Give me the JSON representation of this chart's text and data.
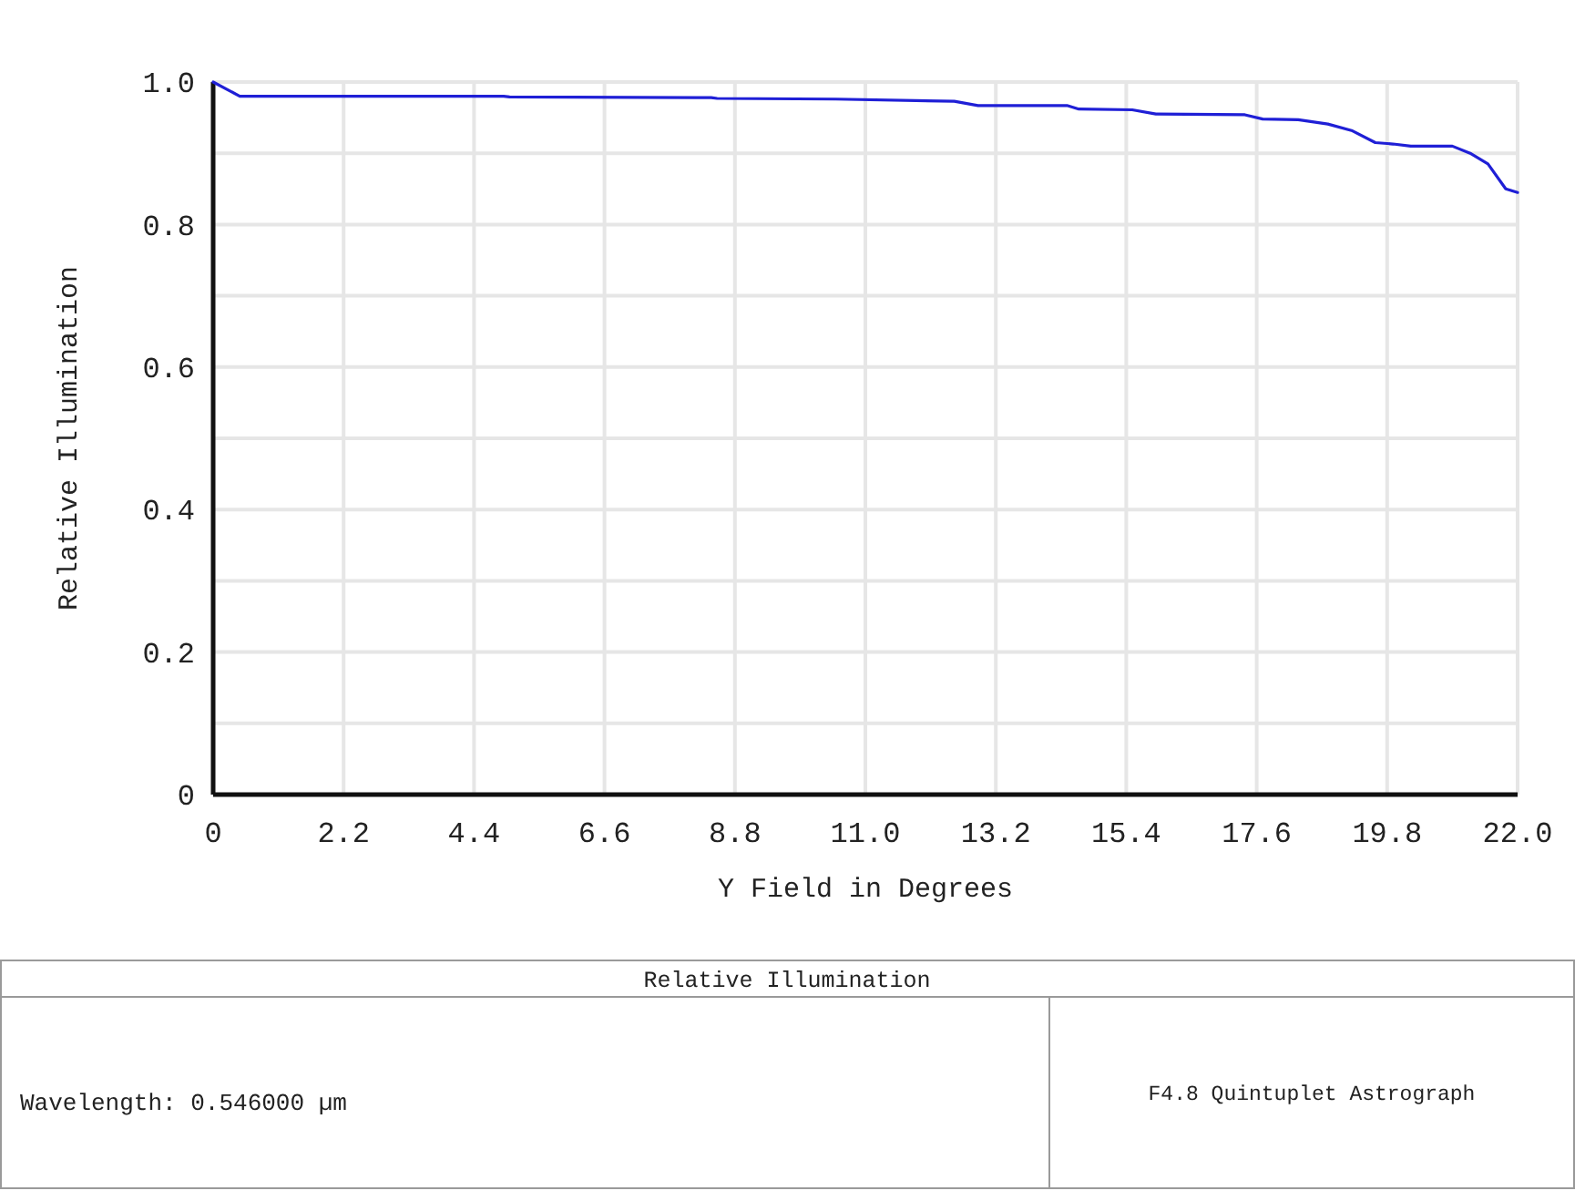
{
  "chart_data": {
    "type": "line",
    "title": "Relative Illumination",
    "xlabel": "Y Field in Degrees",
    "ylabel": "Relative Illumination",
    "x": [
      0,
      0.45,
      4.9,
      5.0,
      8.4,
      8.5,
      10.5,
      12.5,
      12.9,
      14.4,
      14.6,
      15.5,
      15.9,
      17.4,
      17.7,
      18.3,
      18.8,
      19.2,
      19.6,
      19.9,
      20.2,
      20.9,
      21.2,
      21.5,
      21.8,
      22.0
    ],
    "series": [
      {
        "color": "#1f1fd6",
        "values": [
          1.0,
          0.98,
          0.98,
          0.979,
          0.978,
          0.977,
          0.976,
          0.973,
          0.967,
          0.967,
          0.962,
          0.961,
          0.955,
          0.954,
          0.948,
          0.947,
          0.941,
          0.932,
          0.915,
          0.913,
          0.91,
          0.91,
          0.9,
          0.885,
          0.85,
          0.845
        ]
      }
    ],
    "xlim": [
      0,
      22
    ],
    "xticks": [
      0,
      2.2,
      4.4,
      6.6,
      8.8,
      {
        "value": 11,
        "label": "11.0"
      },
      13.2,
      15.4,
      17.6,
      19.8,
      {
        "value": 22,
        "label": "22.0"
      }
    ],
    "ylim": [
      0,
      1
    ],
    "yticks": [
      0,
      {
        "value": 0.1,
        "label": null
      },
      0.2,
      {
        "value": 0.3,
        "label": null
      },
      0.4,
      {
        "value": 0.5,
        "label": null
      },
      0.6,
      {
        "value": 0.7,
        "label": null
      },
      0.8,
      {
        "value": 0.9,
        "label": null
      },
      {
        "value": 1,
        "label": "1.0"
      }
    ],
    "grid": true,
    "line_style": "solid",
    "marker": "none",
    "annotations": [
      "Wavelength: 0.546000 µm",
      "F4.8 Quintuplet Astrograph"
    ]
  }
}
